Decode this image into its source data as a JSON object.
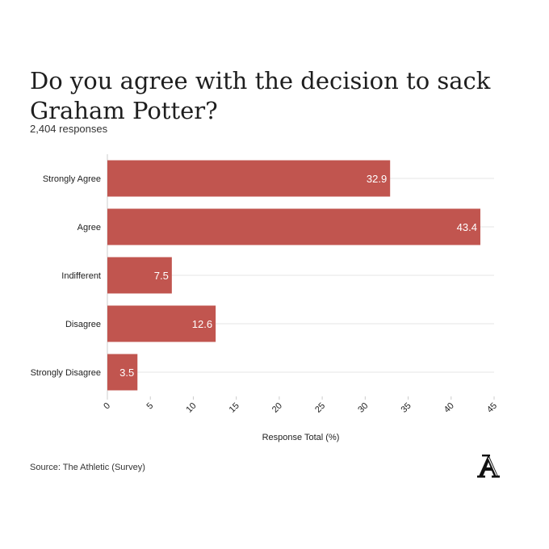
{
  "header": {
    "title_line1": "Do you agree with the decision to sack",
    "title_line2": "Graham Potter?",
    "subtitle": "2,404 responses"
  },
  "footer": {
    "source": "Source: The Athletic (Survey)"
  },
  "logo": {
    "icon": "the-athletic-logo-icon"
  },
  "colors": {
    "bar": "#c1554f",
    "bar_label": "#ffffff",
    "grid": "#e6e6e6",
    "axis": "#cccccc"
  },
  "chart_data": {
    "type": "bar",
    "orientation": "horizontal",
    "title": "Do you agree with the decision to sack Graham Potter?",
    "subtitle": "2,404 responses",
    "categories": [
      "Strongly Agree",
      "Agree",
      "Indifferent",
      "Disagree",
      "Strongly Disagree"
    ],
    "values": [
      32.9,
      43.4,
      7.5,
      12.6,
      3.5
    ],
    "value_labels": [
      "32.9",
      "43.4",
      "7.5",
      "12.6",
      "3.5"
    ],
    "xlabel": "Response Total (%)",
    "ylabel": "",
    "xlim": [
      0,
      45
    ],
    "xticks": [
      0,
      5,
      10,
      15,
      20,
      25,
      30,
      35,
      40,
      45
    ],
    "grid": true
  }
}
